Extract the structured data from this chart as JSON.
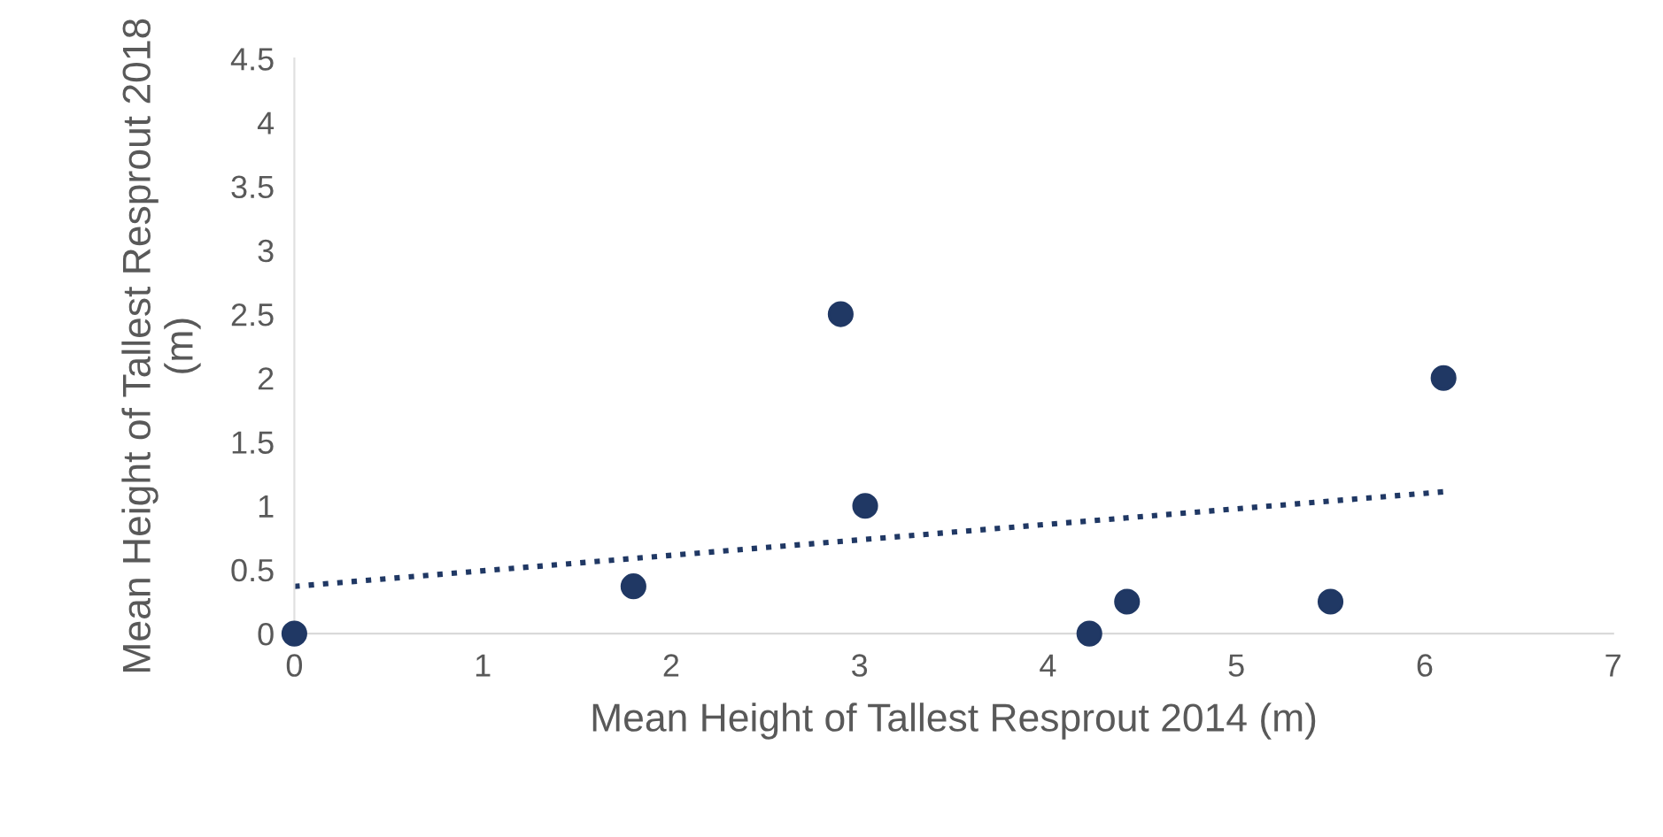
{
  "chart_data": {
    "type": "scatter",
    "xlabel": "Mean Height of Tallest Resprout 2014 (m)",
    "ylabel": "Mean Height of Tallest Resprout 2018 (m)",
    "xlim": [
      0,
      7
    ],
    "xticks": [
      0,
      1,
      2,
      3,
      4,
      5,
      6,
      7
    ],
    "ylim": [
      0,
      4.5
    ],
    "yticks": [
      0,
      0.5,
      1,
      1.5,
      2,
      2.5,
      3,
      3.5,
      4,
      4.5
    ],
    "grid": false,
    "legend": false,
    "series": [
      {
        "marker": "circle",
        "color": "#203864",
        "x": [
          0,
          1.8,
          2.9,
          3.03,
          4.22,
          4.42,
          5.5,
          6.1
        ],
        "values": [
          0,
          0.37,
          2.5,
          1.0,
          0,
          0.25,
          0.25,
          2.0
        ]
      },
      {
        "type": "line",
        "marker": "none",
        "color": "#203864",
        "line_style": "dotted",
        "x": [
          0,
          6.1
        ],
        "values": [
          0.37,
          1.11
        ]
      }
    ]
  }
}
